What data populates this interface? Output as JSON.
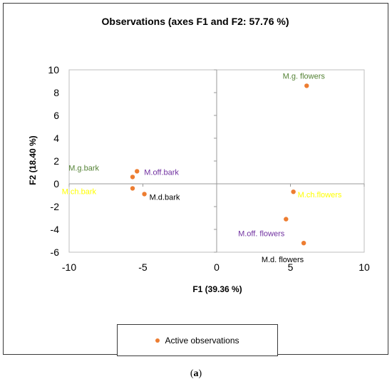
{
  "chart_data": {
    "type": "scatter",
    "title": "Observations (axes F1 and F2: 57.76 %)",
    "xlabel": "F1 (39.36 %)",
    "ylabel": "F2 (18.40 %)",
    "xlim": [
      -10,
      10
    ],
    "ylim": [
      -6,
      10
    ],
    "xticks": [
      -10,
      -5,
      0,
      5,
      10
    ],
    "yticks": [
      -6,
      -4,
      -2,
      0,
      2,
      4,
      6,
      8,
      10
    ],
    "grid": false,
    "legend_position": "bottom",
    "legend": [
      "Active observations"
    ],
    "marker_color": "#ED7D31",
    "points": [
      {
        "name": "M.g. flowers",
        "x": 6.1,
        "y": 8.6,
        "label_color": "#548235"
      },
      {
        "name": "M.g.bark",
        "x": -5.7,
        "y": 0.6,
        "label_color": "#548235"
      },
      {
        "name": "M.off.bark",
        "x": -5.4,
        "y": 1.1,
        "label_color": "#7030A0"
      },
      {
        "name": "M.ch.bark",
        "x": -5.7,
        "y": -0.4,
        "label_color": "#FFFF00"
      },
      {
        "name": "M.d.bark",
        "x": -4.9,
        "y": -0.9,
        "label_color": "#000000"
      },
      {
        "name": "M.ch.flowers",
        "x": 5.2,
        "y": -0.7,
        "label_color": "#FFFF00"
      },
      {
        "name": "M.off. flowers",
        "x": 4.7,
        "y": -3.1,
        "label_color": "#7030A0"
      },
      {
        "name": "M.d. flowers",
        "x": 5.9,
        "y": -5.2,
        "label_color": "#000000"
      }
    ]
  },
  "caption": {
    "open": "(",
    "letter": "a",
    "close": ")"
  }
}
